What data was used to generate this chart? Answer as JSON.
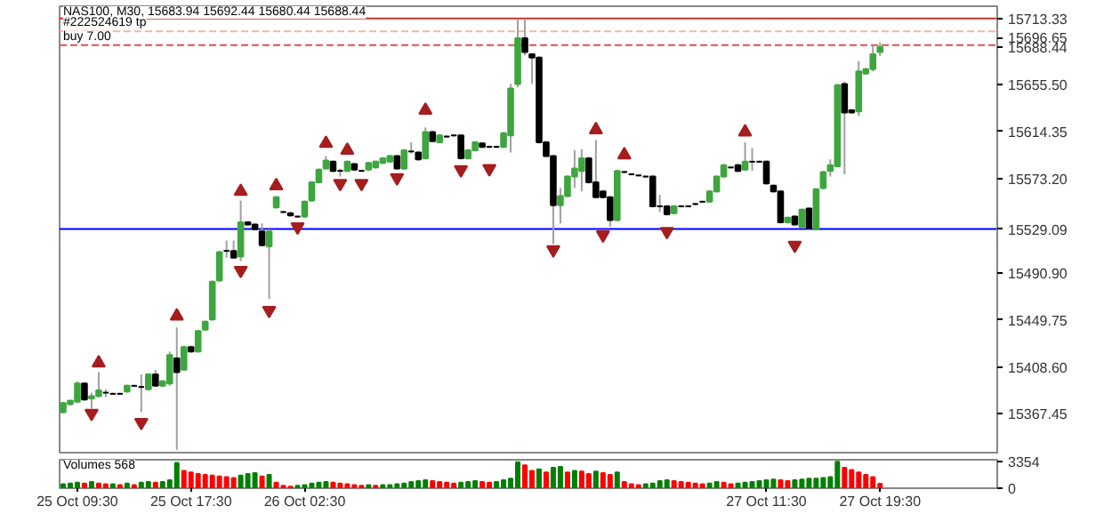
{
  "chart_data": [
    {
      "type": "candlestick",
      "title": "NAS100, M30, 15683.94 15692.44 15680.44 15688.44",
      "categories": [
        null,
        null,
        null,
        null,
        null,
        null,
        null,
        null,
        null,
        null,
        null,
        null,
        null,
        null,
        null,
        null,
        null,
        null,
        null,
        null,
        null,
        null,
        null,
        null,
        null,
        null,
        null,
        null,
        null,
        null,
        null,
        null,
        null,
        null,
        null,
        null,
        null,
        null,
        null,
        null,
        null,
        null,
        null,
        null,
        null,
        null,
        null,
        null,
        null,
        null,
        null,
        null,
        null,
        null,
        null,
        null,
        null,
        null,
        null,
        null,
        null,
        null,
        null,
        null,
        null,
        null,
        null,
        null,
        null,
        null,
        null,
        null,
        null,
        null,
        null,
        null,
        null,
        null,
        null,
        null,
        null,
        null,
        null,
        null,
        null,
        null,
        null,
        null,
        null,
        null,
        null,
        null,
        null,
        null,
        null,
        null,
        null,
        null,
        null,
        null,
        null,
        null,
        null,
        null,
        null,
        null,
        null,
        null,
        null,
        null,
        null,
        null,
        null,
        null,
        null,
        null,
        null,
        null,
        null,
        null,
        null,
        null,
        null,
        null,
        null,
        null,
        null,
        null,
        null,
        null,
        null,
        null
      ],
      "ohlc": [
        [
          15369,
          15378,
          15368,
          15377
        ],
        [
          15376,
          15379,
          15375,
          15379
        ],
        [
          15378,
          15396,
          15377,
          15394
        ],
        [
          15394,
          15395,
          15379,
          15380
        ],
        [
          15381,
          15386,
          15372,
          15383
        ],
        [
          15383,
          15404,
          15382,
          15388
        ],
        [
          15386,
          15389,
          15382,
          15386
        ],
        [
          15385,
          15386,
          15384,
          15385
        ],
        [
          15385,
          15386,
          15384,
          15385
        ],
        [
          15387,
          15393,
          15386,
          15392
        ],
        [
          15392,
          15393,
          15391,
          15392
        ],
        [
          15391,
          15402,
          15369,
          15391
        ],
        [
          15389,
          15403,
          15388,
          15402
        ],
        [
          15402,
          15406,
          15391,
          15392
        ],
        [
          15392,
          15397,
          15391,
          15396
        ],
        [
          15394,
          15422,
          15392,
          15419
        ],
        [
          15416,
          15443,
          15336,
          15404
        ],
        [
          15406,
          15427,
          15405,
          15426
        ],
        [
          15426,
          15427,
          15421,
          15422
        ],
        [
          15422,
          15441,
          15421,
          15440
        ],
        [
          15441,
          15449,
          15440,
          15448
        ],
        [
          15450,
          15484,
          15449,
          15483
        ],
        [
          15484,
          15510,
          15483,
          15509
        ],
        [
          15510,
          15519,
          15504,
          15510
        ],
        [
          15510,
          15519,
          15503,
          15504
        ],
        [
          15505,
          15554,
          15501,
          15535
        ],
        [
          15535,
          15536,
          15532,
          15533
        ],
        [
          15533,
          15534,
          15528,
          15529
        ],
        [
          15527,
          15534,
          15514,
          15515
        ],
        [
          15514,
          15529,
          15468,
          15527
        ],
        [
          15548,
          15558,
          15547,
          15557
        ],
        [
          15544,
          15545,
          15543,
          15544
        ],
        [
          15543,
          15544,
          15540,
          15541
        ],
        [
          15540,
          15541,
          15539,
          15540
        ],
        [
          15540,
          15554,
          15539,
          15553
        ],
        [
          15554,
          15571,
          15553,
          15570
        ],
        [
          15570,
          15582,
          15569,
          15581
        ],
        [
          15582,
          15593,
          15581,
          15589
        ],
        [
          15588,
          15589,
          15579,
          15580
        ],
        [
          15580,
          15582,
          15575,
          15580
        ],
        [
          15580,
          15589,
          15579,
          15588
        ],
        [
          15586,
          15587,
          15580,
          15581
        ],
        [
          15580,
          15581,
          15579,
          15580
        ],
        [
          15581,
          15588,
          15580,
          15587
        ],
        [
          15583,
          15589,
          15582,
          15588
        ],
        [
          15587,
          15592,
          15586,
          15591
        ],
        [
          15588,
          15594,
          15587,
          15593
        ],
        [
          15593,
          15594,
          15581,
          15582
        ],
        [
          15582,
          15599,
          15581,
          15598
        ],
        [
          15597,
          15605,
          15595,
          15597
        ],
        [
          15596,
          15597,
          15589,
          15590
        ],
        [
          15591,
          15618,
          15590,
          15614
        ],
        [
          15614,
          15615,
          15605,
          15606
        ],
        [
          15605,
          15612,
          15604,
          15611
        ],
        [
          15610,
          15611,
          15609,
          15610
        ],
        [
          15611,
          15612,
          15610,
          15611
        ],
        [
          15611,
          15612,
          15590,
          15591
        ],
        [
          15591,
          15599,
          15590,
          15598
        ],
        [
          15598,
          15606,
          15597,
          15605
        ],
        [
          15604,
          15605,
          15600,
          15601
        ],
        [
          15601,
          15602,
          15600,
          15601
        ],
        [
          15601,
          15602,
          15600,
          15601
        ],
        [
          15601,
          15614,
          15600,
          15613
        ],
        [
          15611,
          15656,
          15596,
          15652
        ],
        [
          15656,
          15713,
          15653,
          15696
        ],
        [
          15696,
          15713,
          15681,
          15684
        ],
        [
          15682,
          15683,
          15656,
          15679
        ],
        [
          15679,
          15680,
          15604,
          15605
        ],
        [
          15605,
          15606,
          15592,
          15593
        ],
        [
          15593,
          15594,
          15516,
          15550
        ],
        [
          15550,
          15565,
          15534,
          15558
        ],
        [
          15558,
          15576,
          15557,
          15575
        ],
        [
          15575,
          15598,
          15565,
          15582
        ],
        [
          15580,
          15599,
          15562,
          15591
        ],
        [
          15591,
          15592,
          15569,
          15570
        ],
        [
          15570,
          15607,
          15556,
          15557
        ],
        [
          15562,
          15563,
          15556,
          15557
        ],
        [
          15557,
          15558,
          15531,
          15537
        ],
        [
          15537,
          15581,
          15536,
          15580
        ],
        [
          15579,
          15580,
          15578,
          15579
        ],
        [
          15577,
          15578,
          15576,
          15577
        ],
        [
          15576,
          15577,
          15575,
          15576
        ],
        [
          15575,
          15576,
          15574,
          15575
        ],
        [
          15575,
          15576,
          15548,
          15549
        ],
        [
          15549,
          15559,
          15544,
          15549
        ],
        [
          15549,
          15550,
          15541,
          15542
        ],
        [
          15543,
          15550,
          15542,
          15549
        ],
        [
          15549,
          15550,
          15548,
          15549
        ],
        [
          15549,
          15550,
          15548,
          15549
        ],
        [
          15551,
          15552,
          15550,
          15551
        ],
        [
          15553,
          15554,
          15552,
          15553
        ],
        [
          15553,
          15563,
          15552,
          15562
        ],
        [
          15562,
          15576,
          15561,
          15575
        ],
        [
          15575,
          15586,
          15574,
          15585
        ],
        [
          15583,
          15584,
          15582,
          15583
        ],
        [
          15585,
          15586,
          15579,
          15580
        ],
        [
          15581,
          15605,
          15580,
          15588
        ],
        [
          15588,
          15600,
          15580,
          15588
        ],
        [
          15588,
          15589,
          15587,
          15588
        ],
        [
          15588,
          15589,
          15568,
          15569
        ],
        [
          15567,
          15568,
          15561,
          15562
        ],
        [
          15562,
          15563,
          15534,
          15535
        ],
        [
          15535,
          15540,
          15534,
          15539
        ],
        [
          15540,
          15541,
          15532,
          15533
        ],
        [
          15531,
          15547,
          15530,
          15546
        ],
        [
          15547,
          15548,
          15529,
          15530
        ],
        [
          15529,
          15565,
          15528,
          15564
        ],
        [
          15565,
          15580,
          15564,
          15579
        ],
        [
          15580,
          15590,
          15575,
          15585
        ],
        [
          15584,
          15656,
          15583,
          15655
        ],
        [
          15656,
          15658,
          15577,
          15631
        ],
        [
          15633,
          15634,
          15630,
          15631
        ],
        [
          15632,
          15676,
          15628,
          15667
        ],
        [
          15665,
          15670,
          15664,
          15669
        ],
        [
          15669,
          15689,
          15667,
          15682
        ],
        [
          15683.94,
          15692.44,
          15680.44,
          15688.44
        ],
        null,
        null,
        null,
        null,
        null,
        null,
        null,
        null,
        null,
        null,
        null,
        null,
        null,
        null,
        null,
        null
      ],
      "colors": [
        "#3ea63e",
        "#3ea63e",
        "#3ea63e",
        "#000000",
        "#3ea63e",
        "#3ea63e",
        "#000000",
        "#000000",
        "#000000",
        "#3ea63e",
        "#000000",
        "#000000",
        "#3ea63e",
        "#000000",
        "#3ea63e",
        "#3ea63e",
        "#000000",
        "#3ea63e",
        "#000000",
        "#3ea63e",
        "#3ea63e",
        "#3ea63e",
        "#3ea63e",
        "#000000",
        "#000000",
        "#3ea63e",
        "#000000",
        "#000000",
        "#000000",
        "#3ea63e",
        "#3ea63e",
        "#000000",
        "#000000",
        "#000000",
        "#3ea63e",
        "#3ea63e",
        "#3ea63e",
        "#3ea63e",
        "#000000",
        "#000000",
        "#3ea63e",
        "#000000",
        "#000000",
        "#3ea63e",
        "#3ea63e",
        "#3ea63e",
        "#3ea63e",
        "#000000",
        "#3ea63e",
        "#000000",
        "#000000",
        "#3ea63e",
        "#000000",
        "#3ea63e",
        "#000000",
        "#000000",
        "#000000",
        "#3ea63e",
        "#3ea63e",
        "#000000",
        "#000000",
        "#000000",
        "#3ea63e",
        "#3ea63e",
        "#3ea63e",
        "#000000",
        "#000000",
        "#000000",
        "#000000",
        "#000000",
        "#3ea63e",
        "#3ea63e",
        "#3ea63e",
        "#3ea63e",
        "#000000",
        "#000000",
        "#000000",
        "#000000",
        "#3ea63e",
        "#000000",
        "#000000",
        "#000000",
        "#000000",
        "#000000",
        "#000000",
        "#000000",
        "#3ea63e",
        "#000000",
        "#000000",
        "#000000",
        "#000000",
        "#3ea63e",
        "#3ea63e",
        "#3ea63e",
        "#000000",
        "#000000",
        "#3ea63e",
        "#000000",
        "#000000",
        "#000000",
        "#000000",
        "#000000",
        "#3ea63e",
        "#000000",
        "#3ea63e",
        "#000000",
        "#3ea63e",
        "#3ea63e",
        "#3ea63e",
        "#3ea63e",
        "#000000",
        "#000000",
        "#3ea63e",
        "#3ea63e",
        "#3ea63e",
        "#3ea63e",
        null,
        null,
        null,
        null,
        null,
        null,
        null,
        null,
        null,
        null,
        null,
        null,
        null,
        null,
        null,
        null
      ],
      "series": [
        {
          "type": "scatter",
          "marker": "triangle",
          "color": "#a51d1d",
          "values": [
            null,
            null,
            null,
            null,
            null,
            15412,
            null,
            null,
            null,
            null,
            null,
            null,
            null,
            null,
            null,
            null,
            15453,
            null,
            null,
            null,
            null,
            null,
            null,
            null,
            null,
            15562,
            null,
            null,
            null,
            null,
            15567,
            null,
            null,
            null,
            null,
            null,
            null,
            15604,
            null,
            null,
            15598,
            null,
            null,
            null,
            null,
            null,
            null,
            null,
            null,
            null,
            null,
            15633,
            null,
            null,
            null,
            null,
            null,
            null,
            null,
            null,
            null,
            null,
            null,
            null,
            null,
            null,
            null,
            null,
            null,
            null,
            null,
            null,
            null,
            null,
            null,
            15616,
            null,
            null,
            null,
            15594,
            null,
            null,
            null,
            null,
            null,
            null,
            null,
            null,
            null,
            null,
            null,
            null,
            null,
            null,
            null,
            null,
            15614,
            null,
            null,
            null,
            null,
            null,
            null,
            null,
            null,
            null,
            null,
            null,
            null,
            null,
            null,
            null,
            null,
            null,
            null,
            null,
            null,
            null,
            null,
            null,
            null,
            null,
            null,
            null,
            null,
            null,
            null,
            null,
            null,
            null,
            null,
            null
          ]
        },
        {
          "type": "scatter",
          "marker": "triangle_down",
          "color": "#a51d1d",
          "values": [
            null,
            null,
            null,
            null,
            15368,
            null,
            null,
            null,
            null,
            null,
            null,
            15360,
            null,
            null,
            null,
            null,
            null,
            null,
            null,
            null,
            null,
            null,
            null,
            null,
            null,
            15493,
            null,
            null,
            null,
            15458,
            null,
            null,
            null,
            15531,
            null,
            null,
            null,
            null,
            null,
            15569,
            null,
            null,
            15569,
            null,
            null,
            null,
            null,
            15574,
            null,
            null,
            null,
            null,
            null,
            null,
            null,
            null,
            15581,
            null,
            null,
            null,
            15582,
            null,
            null,
            null,
            null,
            null,
            null,
            null,
            null,
            15511,
            null,
            null,
            null,
            null,
            null,
            null,
            15524,
            null,
            null,
            null,
            null,
            null,
            null,
            null,
            null,
            15527,
            null,
            null,
            null,
            null,
            null,
            null,
            null,
            null,
            null,
            null,
            null,
            null,
            null,
            null,
            null,
            null,
            null,
            15515,
            null,
            null,
            null,
            null,
            null,
            null,
            null,
            null,
            null,
            null,
            null,
            null,
            null,
            null,
            null,
            null,
            null,
            null,
            null,
            null,
            null,
            null,
            null,
            null,
            null,
            null,
            null,
            null
          ]
        }
      ],
      "ylim": [
        15332,
        15724
      ],
      "yticks": [
        15367.45,
        {
          "value": 15408.6,
          "label": "15408.60"
        },
        15449.75,
        {
          "value": 15490.9,
          "label": "15490.90"
        },
        {
          "value": 15573.2,
          "label": "15573.20"
        },
        15614.35,
        {
          "value": 15655.5,
          "label": "15655.50"
        },
        15688.44,
        15696.65
      ],
      "ref_lines": [
        {
          "axis": "y",
          "value": 15713.33,
          "label": "15713.33",
          "color": "#c0392b",
          "line_style": "solid"
        },
        {
          "axis": "y",
          "value": 15702,
          "label": "#222524619 tp",
          "color": "#f0b8a8",
          "line_style": "dashed"
        },
        {
          "axis": "y",
          "value": 15690,
          "label": "buy 7.00",
          "color": "#d9534f",
          "line_style": "dashed"
        },
        {
          "axis": "y",
          "value": 15529.09,
          "label": "15529.09",
          "color": "#0000ff",
          "line_style": "solid"
        }
      ],
      "tick_labels": "y"
    },
    {
      "type": "bar",
      "title": "Volumes 568",
      "categories": [
        null,
        null,
        "25 Oct 09:30",
        null,
        null,
        null,
        null,
        null,
        null,
        null,
        null,
        null,
        null,
        null,
        null,
        null,
        null,
        null,
        "25 Oct 17:30",
        null,
        null,
        null,
        null,
        null,
        null,
        null,
        null,
        null,
        null,
        null,
        null,
        null,
        null,
        null,
        "26 Oct 02:30",
        null,
        null,
        null,
        null,
        null,
        null,
        null,
        null,
        null,
        null,
        null,
        null,
        null,
        null,
        null,
        null,
        null,
        null,
        null,
        null,
        null,
        null,
        null,
        null,
        null,
        null,
        null,
        null,
        null,
        null,
        null,
        null,
        null,
        null,
        null,
        null,
        null,
        null,
        null,
        null,
        null,
        null,
        null,
        null,
        null,
        null,
        null,
        null,
        null,
        null,
        null,
        null,
        null,
        null,
        null,
        null,
        null,
        null,
        null,
        null,
        null,
        null,
        null,
        null,
        "27 Oct 11:30",
        null,
        null,
        null,
        null,
        null,
        null,
        null,
        null,
        null,
        null,
        null,
        null,
        null,
        null,
        null,
        "27 Oct 19:30",
        null,
        null,
        null,
        null,
        null,
        null,
        null,
        null,
        null,
        null,
        null,
        null,
        null,
        null,
        null,
        null
      ],
      "values": [
        500,
        600,
        700,
        600,
        800,
        600,
        500,
        500,
        400,
        600,
        400,
        700,
        800,
        700,
        800,
        1000,
        3200,
        2200,
        2000,
        1800,
        1700,
        1600,
        1500,
        1400,
        1300,
        1600,
        1800,
        1900,
        1500,
        1700,
        700,
        300,
        200,
        300,
        400,
        600,
        700,
        800,
        700,
        600,
        500,
        400,
        300,
        400,
        300,
        400,
        400,
        500,
        600,
        800,
        900,
        1000,
        900,
        800,
        700,
        600,
        700,
        800,
        900,
        800,
        700,
        800,
        1000,
        1200,
        3300,
        2900,
        2200,
        2400,
        2000,
        2600,
        2700,
        2000,
        2200,
        2100,
        1800,
        2100,
        1900,
        1700,
        2000,
        800,
        500,
        400,
        500,
        600,
        900,
        1000,
        900,
        800,
        700,
        600,
        500,
        600,
        800,
        700,
        500,
        600,
        700,
        800,
        900,
        1000,
        1100,
        1000,
        900,
        1000,
        1100,
        1200,
        1200,
        1300,
        1400,
        3354,
        2600,
        2300,
        2000,
        1700,
        1400,
        568,
        null,
        null,
        null,
        null,
        null,
        null,
        null,
        null,
        null,
        null,
        null,
        null,
        null,
        null,
        null,
        null
      ],
      "colors": [
        "#008000",
        "#008000",
        "#008000",
        "#ff0000",
        "#008000",
        "#ff0000",
        "#ff0000",
        "#008000",
        "#ff0000",
        "#008000",
        "#ff0000",
        "#008000",
        "#008000",
        "#ff0000",
        "#008000",
        "#008000",
        "#008000",
        "#ff0000",
        "#ff0000",
        "#ff0000",
        "#ff0000",
        "#ff0000",
        "#ff0000",
        "#ff0000",
        "#ff0000",
        "#008000",
        "#008000",
        "#008000",
        "#ff0000",
        "#008000",
        "#ff0000",
        "#ff0000",
        "#ff0000",
        "#008000",
        "#008000",
        "#008000",
        "#008000",
        "#008000",
        "#ff0000",
        "#ff0000",
        "#ff0000",
        "#ff0000",
        "#ff0000",
        "#008000",
        "#ff0000",
        "#008000",
        "#008000",
        "#008000",
        "#008000",
        "#008000",
        "#008000",
        "#008000",
        "#ff0000",
        "#ff0000",
        "#ff0000",
        "#ff0000",
        "#008000",
        "#008000",
        "#008000",
        "#ff0000",
        "#ff0000",
        "#008000",
        "#008000",
        "#008000",
        "#008000",
        "#ff0000",
        "#ff0000",
        "#008000",
        "#ff0000",
        "#008000",
        "#008000",
        "#ff0000",
        "#008000",
        "#ff0000",
        "#ff0000",
        "#008000",
        "#ff0000",
        "#ff0000",
        "#008000",
        "#ff0000",
        "#ff0000",
        "#ff0000",
        "#008000",
        "#008000",
        "#008000",
        "#008000",
        "#ff0000",
        "#ff0000",
        "#ff0000",
        "#ff0000",
        "#ff0000",
        "#008000",
        "#008000",
        "#ff0000",
        "#ff0000",
        "#008000",
        "#008000",
        "#008000",
        "#008000",
        "#008000",
        "#008000",
        "#ff0000",
        "#ff0000",
        "#008000",
        "#008000",
        "#008000",
        "#008000",
        "#008000",
        "#008000",
        "#008000",
        "#ff0000",
        "#ff0000",
        "#ff0000",
        "#ff0000",
        "#ff0000",
        "#ff0000",
        null,
        null,
        null,
        null,
        null,
        null,
        null,
        null,
        null,
        null,
        null,
        null,
        null,
        null,
        null,
        null
      ],
      "ylim": [
        0,
        3600
      ],
      "yticks": [
        0,
        3354
      ]
    }
  ]
}
